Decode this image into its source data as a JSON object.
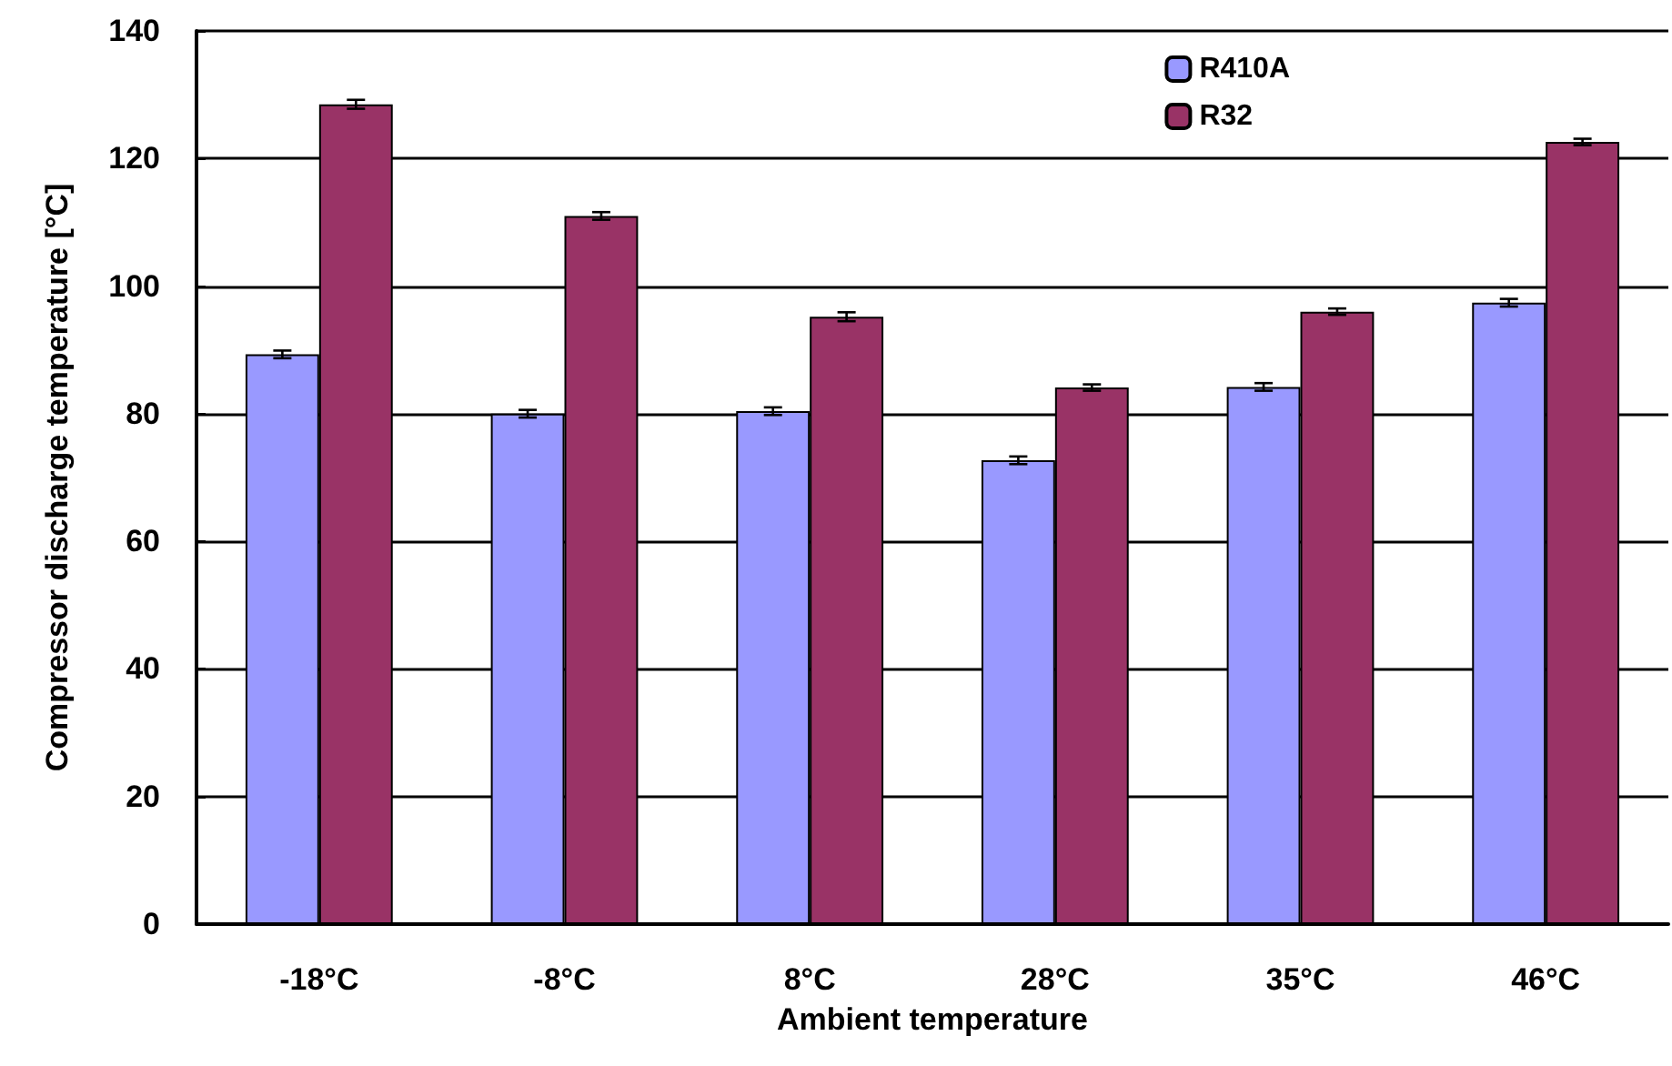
{
  "chart_data": {
    "type": "bar",
    "xlabel": "Ambient temperature",
    "ylabel": "Compressor discharge temperature [°C]",
    "categories": [
      "-18°C",
      "-8°C",
      "8°C",
      "28°C",
      "35°C",
      "46°C"
    ],
    "series": [
      {
        "name": "R410A",
        "color": "#9999ff",
        "values": [
          89.3,
          80,
          80.4,
          72.7,
          84.2,
          97.4
        ],
        "errors": [
          0.6,
          0.6,
          0.6,
          0.6,
          0.6,
          0.6
        ]
      },
      {
        "name": "R32",
        "color": "#993366",
        "values": [
          128.5,
          111,
          95.2,
          84.1,
          96,
          122.6
        ],
        "errors": [
          0.7,
          0.6,
          0.7,
          0.5,
          0.5,
          0.5
        ]
      }
    ],
    "ylim": [
      0,
      140
    ],
    "yticks": [
      0,
      20,
      40,
      60,
      80,
      100,
      120,
      140
    ],
    "grid": "y",
    "legend": "top right"
  }
}
